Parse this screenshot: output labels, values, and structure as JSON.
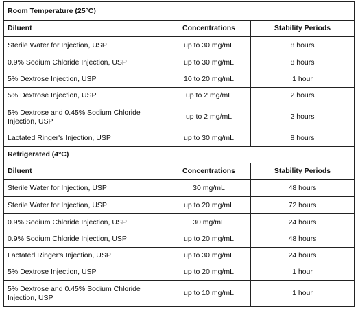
{
  "sections": [
    {
      "title": "Room Temperature (25°C)",
      "headers": [
        "Diluent",
        "Concentrations",
        "Stability Periods"
      ],
      "rows": [
        [
          "Sterile Water for Injection, USP",
          "up to 30 mg/mL",
          "8 hours"
        ],
        [
          "0.9% Sodium Chloride Injection, USP",
          "up to 30 mg/mL",
          "8 hours"
        ],
        [
          "5% Dextrose Injection, USP",
          "10 to 20 mg/mL",
          "1 hour"
        ],
        [
          "5% Dextrose Injection, USP",
          "up to 2 mg/mL",
          "2 hours"
        ],
        [
          "5% Dextrose and 0.45% Sodium Chloride Injection, USP",
          "up to 2 mg/mL",
          "2 hours"
        ],
        [
          "Lactated Ringer's Injection, USP",
          "up to 30 mg/mL",
          "8 hours"
        ]
      ]
    },
    {
      "title": "Refrigerated (4°C)",
      "headers": [
        "Diluent",
        "Concentrations",
        "Stability Periods"
      ],
      "rows": [
        [
          "Sterile Water for Injection, USP",
          "30 mg/mL",
          "48 hours"
        ],
        [
          "Sterile Water for Injection, USP",
          "up to 20 mg/mL",
          "72 hours"
        ],
        [
          "0.9% Sodium Chloride Injection, USP",
          "30 mg/mL",
          "24 hours"
        ],
        [
          "0.9% Sodium Chloride Injection, USP",
          "up to 20 mg/mL",
          "48 hours"
        ],
        [
          "Lactated Ringer's Injection, USP",
          "up to 30 mg/mL",
          "24 hours"
        ],
        [
          "5% Dextrose Injection, USP",
          "up to 20 mg/mL",
          "1 hour"
        ],
        [
          "5% Dextrose and 0.45% Sodium Chloride Injection, USP",
          "up to 10 mg/mL",
          "1 hour"
        ]
      ]
    }
  ]
}
